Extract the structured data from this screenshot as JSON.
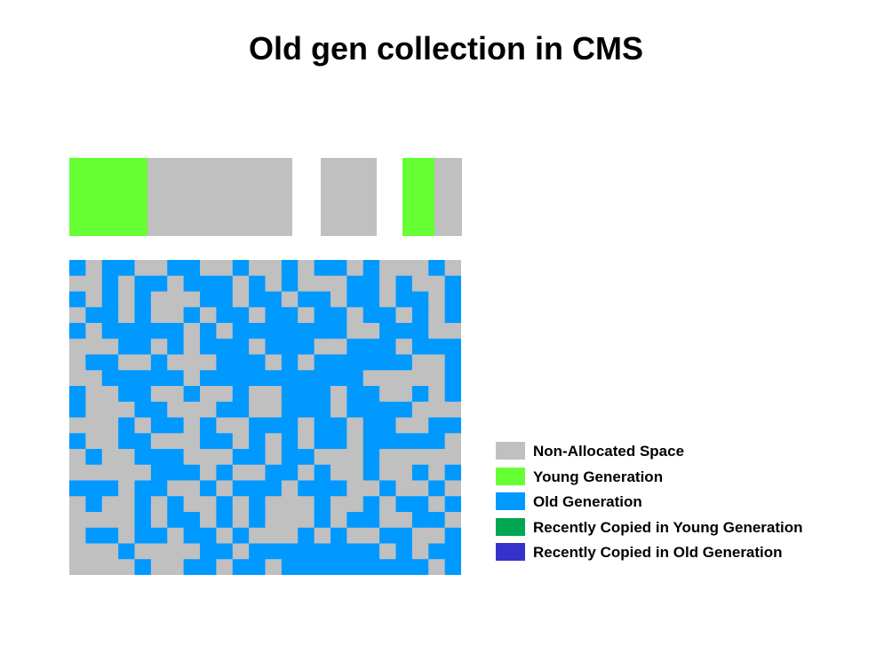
{
  "title": "Old gen collection in CMS",
  "colors": {
    "non_allocated": "#c0c0c0",
    "young": "#66ff33",
    "old": "#0099ff",
    "recent_young": "#00a651",
    "recent_old": "#3333cc"
  },
  "legend": [
    {
      "label": "Non-Allocated Space",
      "color": "#c0c0c0"
    },
    {
      "label": "Young Generation",
      "color": "#66ff33"
    },
    {
      "label": "Old Generation",
      "color": "#0099ff"
    },
    {
      "label": "Recently Copied in Young Generation",
      "color": "#00a651"
    },
    {
      "label": "Recently Copied in Old Generation",
      "color": "#3333cc"
    }
  ],
  "old_gen_grid": [
    "OGOOGGOOGGOGGOGOOGOGGGOG",
    "GGOGOOGOOOGOGOGGGOOGOGGO",
    "OGOGOGGGOOGOOGOOGOOGOOGO",
    "GOOGOGGOGOOGOOGOOGOOGOGO",
    "OGOOOOOGOGOOOOOOOGGOOOGG",
    "GGGOOGOGOOOGOOOGGOOOGOOO",
    "GOOGGOGGGOOOGOGOOOOOOGGO",
    "GGOOOOOGOOOOOOOOOOGGGGGO",
    "OGGOOGGOGGOGGOOOGOOGGOGO",
    "OGGGOOGGGOOGGOOOGOOOOGGG",
    "GGGOGOOGOGGOOOGOOGOOGGOO",
    "OGGOOGGGOOGOGOGOOGOOOOOG",
    "GOGGOOOGGGOOGOOGGGOGGGGG",
    "GGGGGOOOGOGGOOGOGGOGGOGO",
    "OOOGOOGGOGOOOGOOOGGOGGOG",
    "GOGGOGOGGOGOGGGOGGOGOOGO",
    "GGGGOGOOGOGOGGGOGOOGGOOG",
    "GOOGOOGOOGOGGGOGOGGOOGGO",
    "GGGOGGGGOOGOOOOOOOOGOGOO",
    "GGGGOGGOOGOOGOOOOOOOOOGO"
  ]
}
